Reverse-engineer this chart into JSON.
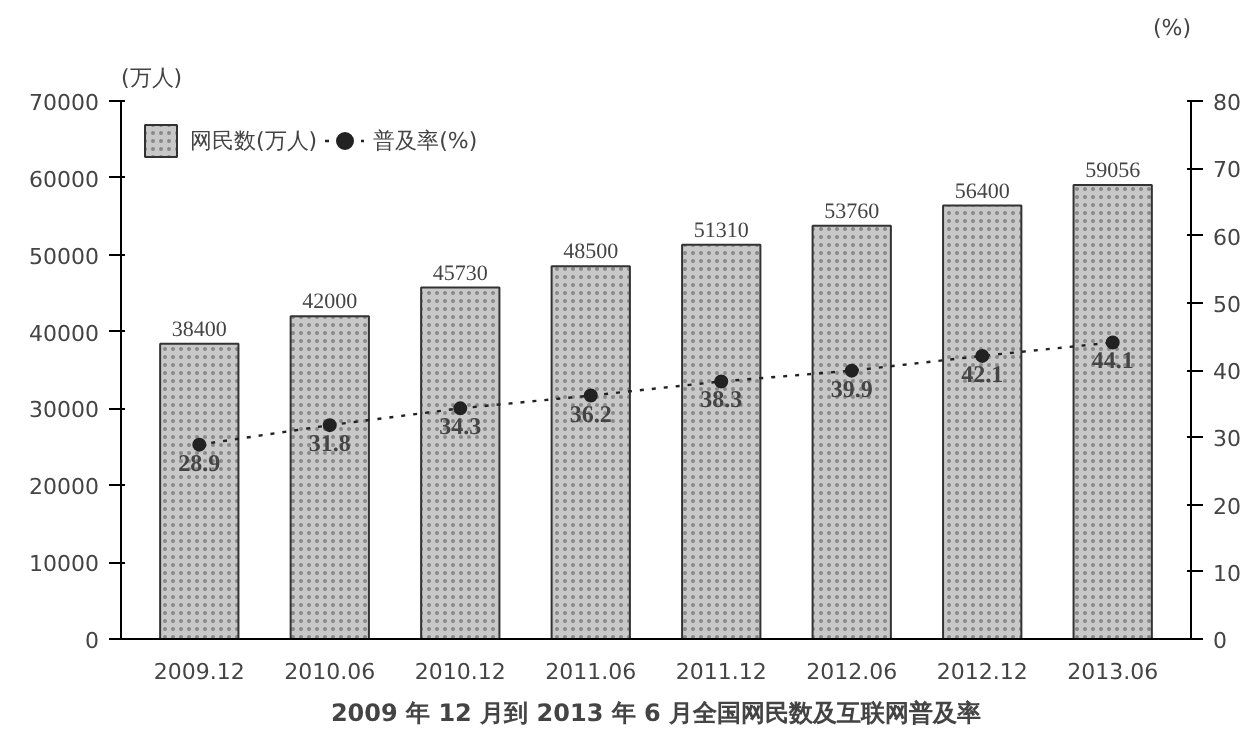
{
  "chart_data": {
    "type": "bar",
    "title": "2009 年 12 月到 2013 年 6 月全国网民数及互联网普及率",
    "ylabel": "(万人)",
    "y2label": "(%)",
    "categories": [
      "2009.12",
      "2010.06",
      "2010.12",
      "2011.06",
      "2011.12",
      "2012.06",
      "2012.12",
      "2013.06"
    ],
    "series": [
      {
        "name": "网民数(万人)",
        "color": "#c8c8c8",
        "values": [
          38400,
          42000,
          45730,
          48500,
          51310,
          53760,
          56400,
          59056
        ]
      },
      {
        "name": "普及率(%)",
        "type": "line",
        "axis": "y2",
        "color": "#222222",
        "marker": "circle",
        "line_style": "dotted",
        "values": [
          28.9,
          31.8,
          34.3,
          36.2,
          38.3,
          39.9,
          42.1,
          44.1
        ]
      }
    ],
    "ylim": [
      0,
      70000
    ],
    "yticks": [
      0,
      10000,
      20000,
      30000,
      40000,
      50000,
      60000,
      70000
    ],
    "y2lim": [
      0,
      80
    ],
    "y2ticks": [
      0,
      10,
      20,
      30,
      40,
      50,
      60,
      70,
      80
    ],
    "data_labels": true,
    "grid": false,
    "legend": "top left"
  }
}
